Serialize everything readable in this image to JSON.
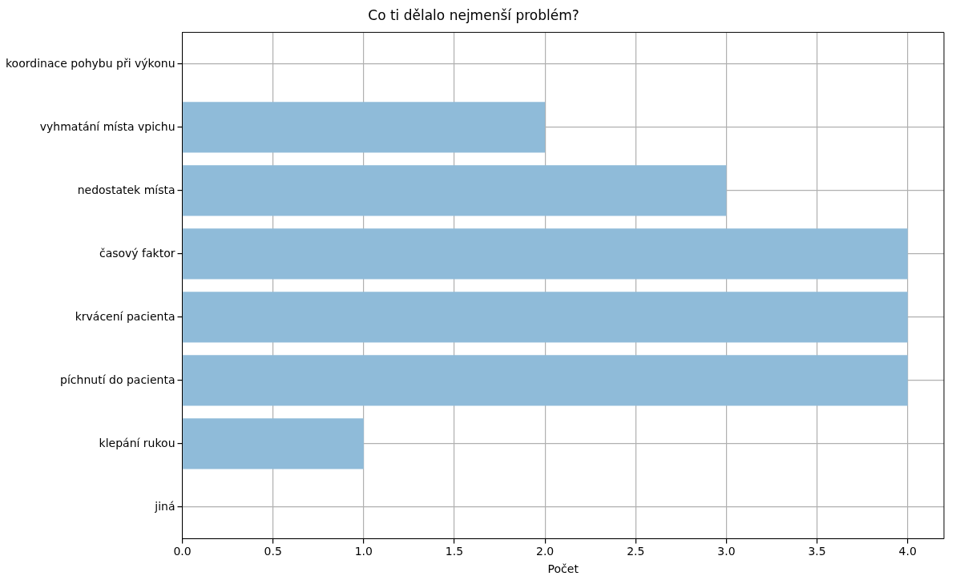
{
  "chart_data": {
    "type": "bar",
    "orientation": "horizontal",
    "title": "Co ti dělalo nejmenší problém?",
    "xlabel": "Počet",
    "categories": [
      "koordinace pohybu při výkonu",
      "vyhmatání místa vpichu",
      "nedostatek místa",
      "časový faktor",
      "krvácení pacienta",
      "píchnutí do pacienta",
      "klepání rukou",
      "jiná"
    ],
    "values": [
      0,
      2,
      3,
      4,
      4,
      4,
      1,
      0
    ],
    "color": "#8fbbd9",
    "xlim": [
      0,
      4.2
    ],
    "xticks": [
      {
        "value": 0,
        "label": "0.0"
      },
      {
        "value": 0.5,
        "label": "0.5"
      },
      {
        "value": 1,
        "label": "1.0"
      },
      {
        "value": 1.5,
        "label": "1.5"
      },
      {
        "value": 2,
        "label": "2.0"
      },
      {
        "value": 2.5,
        "label": "2.5"
      },
      {
        "value": 3,
        "label": "3.0"
      },
      {
        "value": 3.5,
        "label": "3.5"
      },
      {
        "value": 4,
        "label": "4.0"
      }
    ],
    "grid": true
  }
}
